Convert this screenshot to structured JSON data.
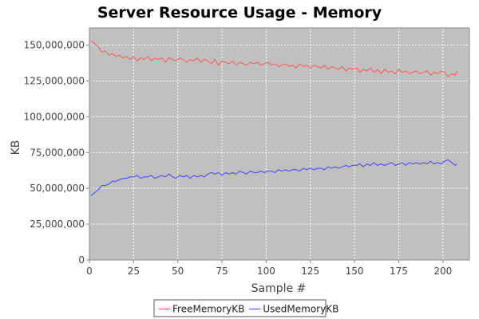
{
  "chart_data": {
    "type": "line",
    "title": "Server Resource Usage - Memory",
    "xlabel": "Sample #",
    "ylabel": "KB",
    "xlim": [
      0,
      215
    ],
    "ylim": [
      0,
      162000000
    ],
    "x_ticks": [
      0,
      25,
      50,
      75,
      100,
      125,
      150,
      175,
      200
    ],
    "y_ticks": [
      0,
      25000000,
      50000000,
      75000000,
      100000000,
      125000000,
      150000000
    ],
    "y_tick_labels": [
      "0",
      "25,000,000",
      "50,000,000",
      "75,000,000",
      "100,000,000",
      "125,000,000",
      "150,000,000"
    ],
    "x_tick_labels": [
      "0",
      "25",
      "50",
      "75",
      "100",
      "125",
      "150",
      "175",
      "200"
    ],
    "grid": true,
    "legend_position": "bottom",
    "background": "#c0c0c0",
    "series": [
      {
        "name": "FreeMemoryKB",
        "color": "#ff5555",
        "x": [
          1,
          3,
          5,
          7,
          9,
          11,
          13,
          15,
          17,
          19,
          21,
          23,
          25,
          27,
          29,
          31,
          33,
          35,
          37,
          39,
          41,
          43,
          45,
          47,
          49,
          51,
          53,
          55,
          57,
          59,
          61,
          63,
          65,
          67,
          69,
          71,
          73,
          75,
          77,
          79,
          81,
          83,
          85,
          87,
          89,
          91,
          93,
          95,
          97,
          99,
          101,
          103,
          105,
          107,
          109,
          111,
          113,
          115,
          117,
          119,
          121,
          123,
          125,
          127,
          129,
          131,
          133,
          135,
          137,
          139,
          141,
          143,
          145,
          147,
          149,
          151,
          153,
          155,
          157,
          159,
          161,
          163,
          165,
          167,
          169,
          171,
          173,
          175,
          177,
          179,
          181,
          183,
          185,
          187,
          189,
          191,
          193,
          195,
          197,
          199,
          201,
          203,
          205,
          207,
          208
        ],
        "values": [
          153000000,
          151000000,
          149000000,
          145000000,
          146000000,
          143000000,
          144000000,
          142000000,
          143000000,
          141000000,
          142000000,
          140000000,
          142000000,
          139000000,
          141000000,
          140000000,
          142000000,
          139000000,
          141000000,
          140000000,
          141000000,
          138000000,
          141000000,
          140000000,
          139000000,
          141000000,
          140000000,
          138000000,
          140000000,
          139000000,
          141000000,
          138000000,
          140000000,
          139000000,
          137000000,
          140000000,
          136000000,
          139000000,
          138000000,
          137000000,
          139000000,
          136000000,
          138000000,
          137000000,
          136000000,
          138000000,
          137000000,
          138000000,
          136000000,
          137000000,
          138000000,
          136000000,
          137000000,
          135000000,
          136000000,
          137000000,
          135000000,
          136000000,
          134000000,
          137000000,
          135000000,
          136000000,
          134000000,
          136000000,
          135000000,
          134000000,
          136000000,
          133000000,
          135000000,
          134000000,
          133000000,
          135000000,
          132000000,
          134000000,
          133000000,
          134000000,
          131000000,
          133000000,
          132000000,
          134000000,
          131000000,
          133000000,
          130000000,
          133000000,
          131000000,
          132000000,
          130000000,
          133000000,
          131000000,
          132000000,
          130000000,
          131000000,
          132000000,
          130000000,
          131000000,
          132000000,
          129000000,
          131000000,
          130000000,
          132000000,
          131000000,
          128000000,
          130000000,
          129000000,
          132000000
        ]
      },
      {
        "name": "UsedMemoryKB",
        "color": "#4444ff",
        "x": [
          1,
          3,
          5,
          7,
          9,
          11,
          13,
          15,
          17,
          19,
          21,
          23,
          25,
          27,
          29,
          31,
          33,
          35,
          37,
          39,
          41,
          43,
          45,
          47,
          49,
          51,
          53,
          55,
          57,
          59,
          61,
          63,
          65,
          67,
          69,
          71,
          73,
          75,
          77,
          79,
          81,
          83,
          85,
          87,
          89,
          91,
          93,
          95,
          97,
          99,
          101,
          103,
          105,
          107,
          109,
          111,
          113,
          115,
          117,
          119,
          121,
          123,
          125,
          127,
          129,
          131,
          133,
          135,
          137,
          139,
          141,
          143,
          145,
          147,
          149,
          151,
          153,
          155,
          157,
          159,
          161,
          163,
          165,
          167,
          169,
          171,
          173,
          175,
          177,
          179,
          181,
          183,
          185,
          187,
          189,
          191,
          193,
          195,
          197,
          199,
          201,
          203,
          205,
          207,
          208
        ],
        "values": [
          45000000,
          47000000,
          49000000,
          52000000,
          52000000,
          53000000,
          55000000,
          55000000,
          56000000,
          57000000,
          57000000,
          58000000,
          58000000,
          59000000,
          57000000,
          58000000,
          58000000,
          59000000,
          57000000,
          58000000,
          59000000,
          58000000,
          60000000,
          58000000,
          57000000,
          59000000,
          58000000,
          59000000,
          57000000,
          59000000,
          58000000,
          59000000,
          58000000,
          60000000,
          61000000,
          60000000,
          61000000,
          59000000,
          61000000,
          60000000,
          61000000,
          60000000,
          62000000,
          61000000,
          60000000,
          62000000,
          61000000,
          61000000,
          62000000,
          61000000,
          62000000,
          62000000,
          61000000,
          63000000,
          62000000,
          63000000,
          62000000,
          63000000,
          63000000,
          62000000,
          64000000,
          63000000,
          64000000,
          63000000,
          64000000,
          64000000,
          63000000,
          65000000,
          64000000,
          65000000,
          64000000,
          65000000,
          66000000,
          65000000,
          66000000,
          66000000,
          67000000,
          65000000,
          67000000,
          66000000,
          68000000,
          66000000,
          67000000,
          66000000,
          67000000,
          68000000,
          66000000,
          67000000,
          68000000,
          66000000,
          68000000,
          67000000,
          68000000,
          67000000,
          68000000,
          67000000,
          69000000,
          67000000,
          68000000,
          67000000,
          69000000,
          70000000,
          68000000,
          66000000,
          67000000
        ]
      }
    ]
  }
}
